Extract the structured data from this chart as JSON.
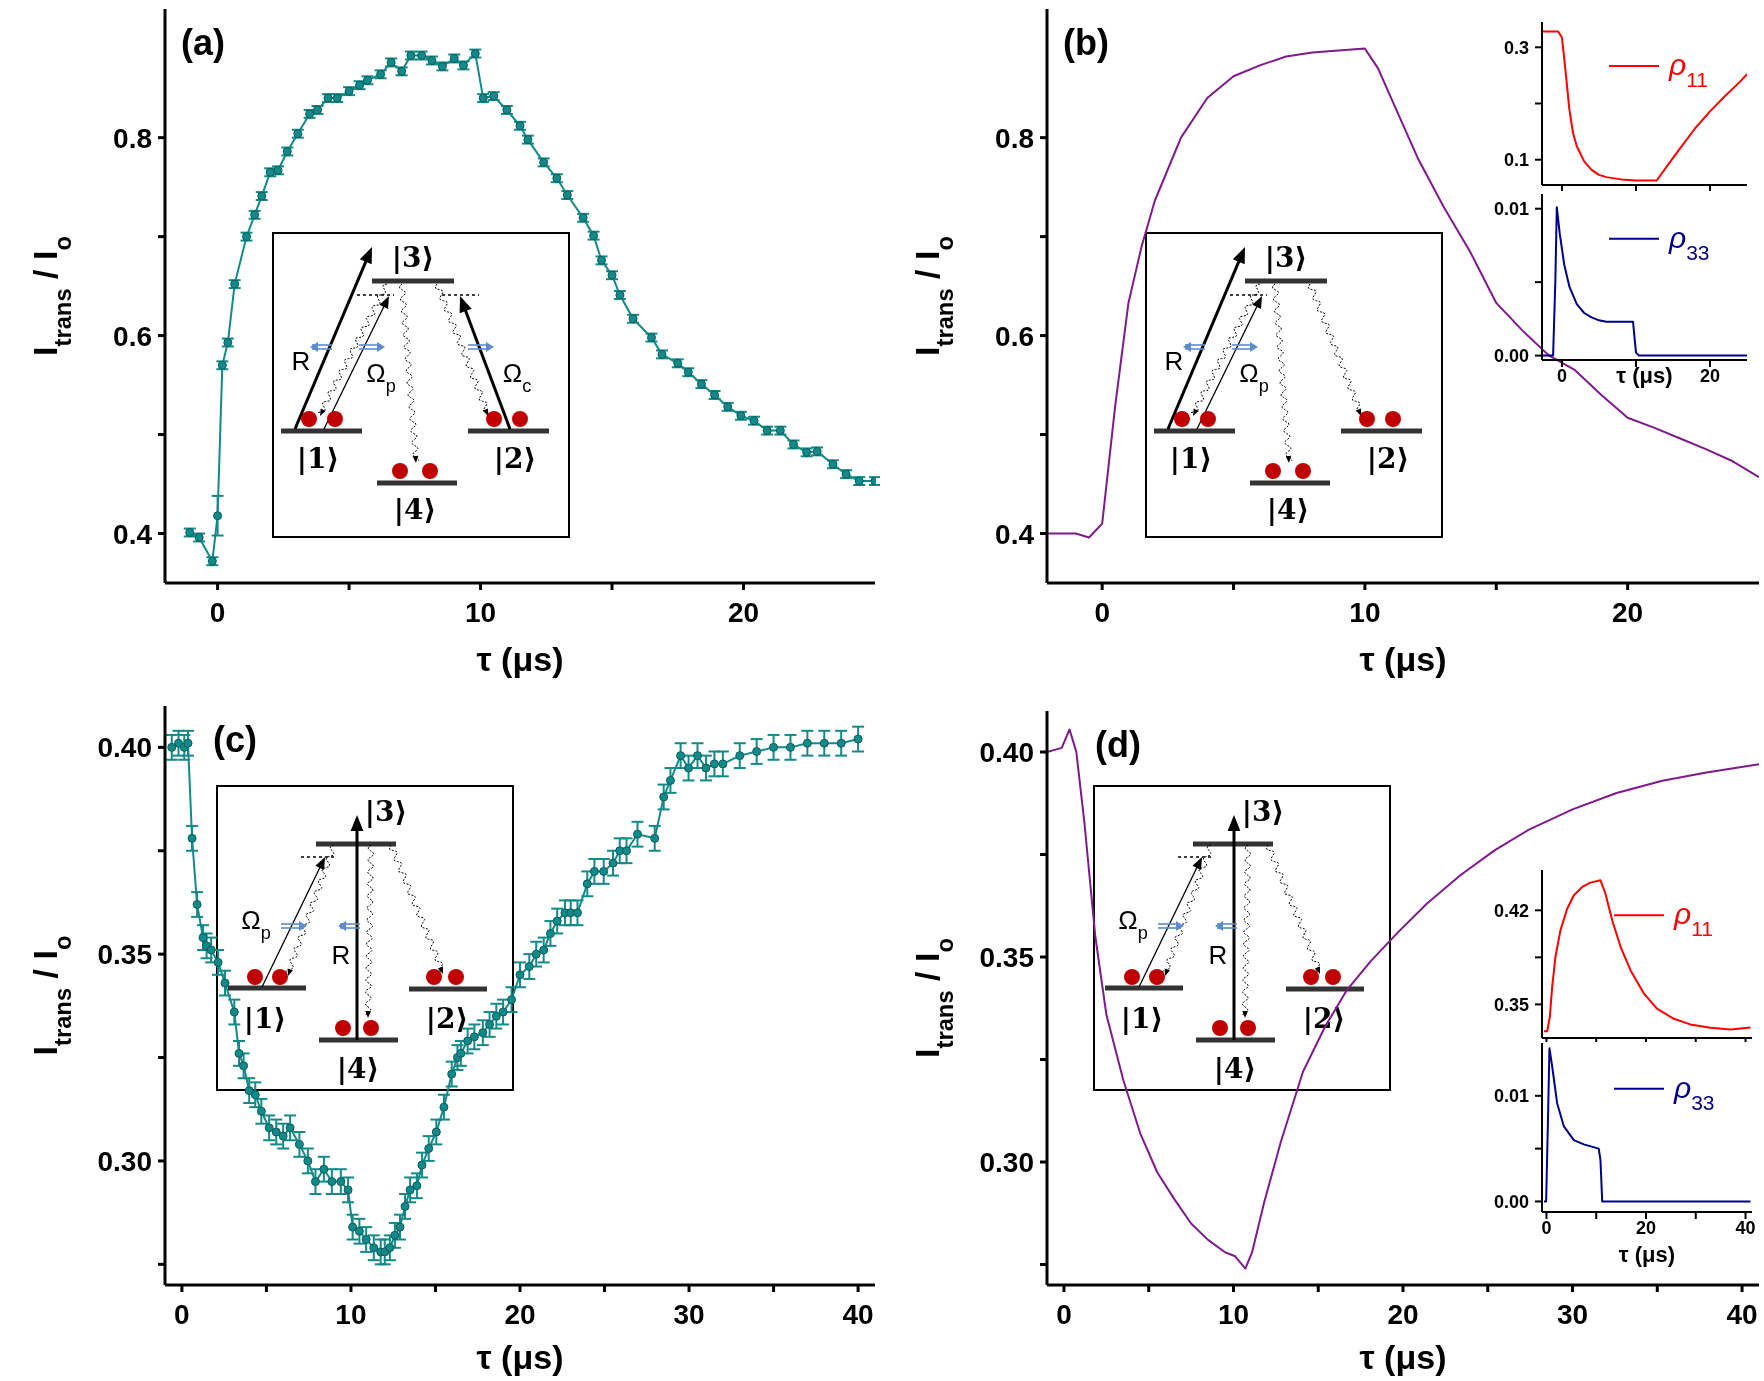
{
  "chart_data": [
    {
      "type": "line",
      "xlabel": "τ (μs)",
      "ylabel": "I$_{trans}$ / I$_{o}$",
      "annotations": [
        "(a)",
        "|1⟩",
        "|2⟩",
        "|3⟩",
        "|4⟩",
        "R",
        "Ω$_{p}$",
        "Ω$_{c}$"
      ],
      "x": [
        -1.06,
        -0.7,
        -0.2,
        0,
        0.18,
        0.39,
        0.65,
        1.1,
        1.41,
        1.68,
        2.0,
        2.3,
        2.65,
        3.05,
        3.5,
        3.8,
        4.2,
        4.55,
        5.0,
        5.4,
        5.7,
        6.2,
        6.6,
        7.0,
        7.35,
        7.76,
        8.15,
        8.55,
        9.0,
        9.35,
        9.8,
        10.1,
        10.5,
        11.0,
        11.5,
        11.8,
        12.4,
        12.9,
        13.3,
        13.9,
        14.3,
        14.6,
        15.0,
        15.3,
        15.8,
        16.5,
        16.9,
        17.5,
        17.9,
        18.4,
        18.9,
        19.4,
        19.9,
        20.4,
        20.9,
        21.4,
        21.9,
        22.4,
        22.8,
        23.4,
        23.9,
        24.4,
        25.0
      ],
      "series": [
        {
          "color": "#138a8a",
          "values": [
            0.401,
            0.396,
            0.372,
            0.418,
            0.57,
            0.593,
            0.652,
            0.7,
            0.722,
            0.741,
            0.765,
            0.767,
            0.786,
            0.804,
            0.824,
            0.828,
            0.84,
            0.84,
            0.847,
            0.853,
            0.858,
            0.864,
            0.876,
            0.867,
            0.883,
            0.883,
            0.878,
            0.872,
            0.88,
            0.873,
            0.885,
            0.84,
            0.842,
            0.828,
            0.812,
            0.798,
            0.775,
            0.759,
            0.742,
            0.719,
            0.701,
            0.676,
            0.661,
            0.641,
            0.617,
            0.598,
            0.581,
            0.572,
            0.563,
            0.551,
            0.54,
            0.528,
            0.519,
            0.514,
            0.504,
            0.504,
            0.49,
            0.482,
            0.483,
            0.47,
            0.46,
            0.453,
            0.453
          ],
          "errors": [
            0.004,
            0.004,
            0.004,
            0.02,
            0.004,
            0.004,
            0.004,
            0.004,
            0.004,
            0.004,
            0.004,
            0.004,
            0.004,
            0.004,
            0.004,
            0.004,
            0.004,
            0.004,
            0.004,
            0.004,
            0.004,
            0.004,
            0.004,
            0.004,
            0.004,
            0.004,
            0.004,
            0.004,
            0.004,
            0.004,
            0.004,
            0.004,
            0.004,
            0.004,
            0.004,
            0.004,
            0.004,
            0.004,
            0.004,
            0.004,
            0.004,
            0.004,
            0.004,
            0.004,
            0.004,
            0.004,
            0.004,
            0.004,
            0.004,
            0.004,
            0.004,
            0.004,
            0.004,
            0.004,
            0.004,
            0.004,
            0.004,
            0.004,
            0.004,
            0.004,
            0.004,
            0.004,
            0.004
          ]
        }
      ],
      "marker": "circle",
      "xlim": [
        -2,
        25
      ],
      "ylim": [
        0.35,
        0.93
      ],
      "xticks": [
        0,
        {
          "value": 5,
          "label": null
        },
        10,
        {
          "value": 15,
          "label": null
        },
        20
      ],
      "yticks": [
        0.4,
        {
          "value": 0.5,
          "label": null
        },
        0.6,
        {
          "value": 0.7,
          "label": null
        },
        0.8
      ]
    },
    {
      "type": "line",
      "xlabel": "τ (μs)",
      "ylabel": "I$_{trans}$ / I$_{o}$",
      "annotations": [
        "(b)",
        "|1⟩",
        "|2⟩",
        "|3⟩",
        "|4⟩",
        "R",
        "Ω$_{p}$"
      ],
      "x": [
        -2.1,
        -1,
        -0.5,
        0,
        0.5,
        1,
        1.5,
        2,
        3,
        4,
        5,
        6,
        7,
        8,
        9,
        10,
        10.5,
        11,
        12,
        13,
        14,
        15,
        16,
        17,
        18,
        19,
        20,
        21,
        22,
        23,
        24,
        25
      ],
      "series": [
        {
          "color": "#7f1a8c",
          "values": [
            0.4,
            0.4,
            0.396,
            0.41,
            0.53,
            0.633,
            0.69,
            0.736,
            0.8,
            0.84,
            0.862,
            0.873,
            0.882,
            0.886,
            0.888,
            0.89,
            0.87,
            0.84,
            0.78,
            0.73,
            0.685,
            0.633,
            0.605,
            0.58,
            0.565,
            0.54,
            0.517,
            0.507,
            0.496,
            0.485,
            0.473,
            0.457
          ]
        }
      ],
      "marker": "none",
      "xlim": [
        -2.1,
        25
      ],
      "ylim": [
        0.35,
        0.93
      ],
      "xticks": [
        0,
        {
          "value": 5,
          "label": null
        },
        10,
        {
          "value": 15,
          "label": null
        },
        20
      ],
      "yticks": [
        0.4,
        {
          "value": 0.5,
          "label": null
        },
        0.6,
        {
          "value": 0.7,
          "label": null
        },
        0.8
      ]
    },
    {
      "type": "line",
      "x": [
        -2.7,
        -0.5,
        0,
        0.5,
        1,
        1.5,
        2,
        3,
        4,
        5,
        6,
        8,
        10,
        12,
        12.8,
        14,
        16,
        18,
        20,
        22,
        24,
        25
      ],
      "series": [
        {
          "name": "ρ$_{11}$",
          "color": "#ff0000",
          "values": [
            0.328,
            0.328,
            0.317,
            0.255,
            0.189,
            0.147,
            0.124,
            0.097,
            0.082,
            0.073,
            0.069,
            0.065,
            0.063,
            0.063,
            0.063,
            0.085,
            0.121,
            0.156,
            0.186,
            0.213,
            0.238,
            0.252
          ]
        }
      ],
      "marker": "none",
      "legend": "top right",
      "tick_labels": "y",
      "xlim": [
        -2.7,
        25
      ],
      "ylim": [
        0.055,
        0.345
      ],
      "xticks": [
        0,
        10,
        20
      ],
      "yticks": [
        0.1,
        {
          "value": 0.2,
          "label": null
        },
        0.3
      ]
    },
    {
      "type": "line",
      "xlabel": "τ (μs)",
      "x": [
        -2.7,
        -1.2,
        -0.9,
        -0.7,
        -0.3,
        0.3,
        1,
        2,
        3,
        4,
        5,
        6,
        9.6,
        10,
        10.4,
        25
      ],
      "series": [
        {
          "name": "ρ$_{33}$",
          "color": "#00008b",
          "values": [
            0,
            0,
            0.005,
            0.0101,
            0.0083,
            0.0062,
            0.0047,
            0.0035,
            0.0029,
            0.0026,
            0.0024,
            0.0023,
            0.0023,
            0.0002,
            0,
            0
          ]
        }
      ],
      "marker": "none",
      "legend": "top right",
      "xlim": [
        -2.7,
        25
      ],
      "ylim": [
        -0.0003,
        0.011
      ],
      "xticks": [
        0,
        {
          "value": 10,
          "label": null
        },
        20
      ],
      "yticks": [
        {
          "value": 0,
          "label": "0.00"
        },
        {
          "value": 0.005,
          "label": null
        },
        0.01
      ]
    },
    {
      "type": "line",
      "xlabel": "τ (μs)",
      "ylabel": "I$_{trans}$ / I$_{o}$",
      "annotations": [
        "(c)",
        "|1⟩",
        "|2⟩",
        "|3⟩",
        "|4⟩",
        "R",
        "Ω$_{p}$"
      ],
      "x": [
        -0.6,
        -0.2,
        0.14,
        0.36,
        0.6,
        0.9,
        1.25,
        1.46,
        1.73,
        2.14,
        2.55,
        3.1,
        3.38,
        3.65,
        3.98,
        4.34,
        4.7,
        5.16,
        5.58,
        5.99,
        6.4,
        6.95,
        7.45,
        7.9,
        8.4,
        8.87,
        9.4,
        9.83,
        10.1,
        10.5,
        10.9,
        11.35,
        11.76,
        12.0,
        12.3,
        12.6,
        12.9,
        13.2,
        13.5,
        13.9,
        14.2,
        14.6,
        15.05,
        15.5,
        15.96,
        16.3,
        16.5,
        16.9,
        17.3,
        17.8,
        18.2,
        18.6,
        19.0,
        19.5,
        20.0,
        20.55,
        20.96,
        21.4,
        21.8,
        22.2,
        22.66,
        23.0,
        23.4,
        23.98,
        24.4,
        24.95,
        25.5,
        25.9,
        26.3,
        26.95,
        27.97,
        28.5,
        28.9,
        29.5,
        29.97,
        30.5,
        31.0,
        31.5,
        32.0,
        33.0,
        34.0,
        35.0,
        36.0,
        37.0,
        38.0,
        39.0,
        40.0
      ],
      "series": [
        {
          "color": "#138a8a",
          "values": [
            0.4,
            0.401,
            0.4,
            0.401,
            0.378,
            0.362,
            0.354,
            0.352,
            0.351,
            0.348,
            0.343,
            0.336,
            0.326,
            0.323,
            0.317,
            0.316,
            0.312,
            0.308,
            0.307,
            0.306,
            0.308,
            0.304,
            0.3,
            0.295,
            0.298,
            0.295,
            0.295,
            0.293,
            0.284,
            0.283,
            0.281,
            0.279,
            0.278,
            0.278,
            0.279,
            0.282,
            0.284,
            0.289,
            0.293,
            0.294,
            0.299,
            0.303,
            0.307,
            0.313,
            0.321,
            0.325,
            0.326,
            0.329,
            0.33,
            0.331,
            0.333,
            0.335,
            0.336,
            0.339,
            0.345,
            0.347,
            0.35,
            0.351,
            0.355,
            0.358,
            0.36,
            0.36,
            0.36,
            0.367,
            0.37,
            0.37,
            0.372,
            0.375,
            0.375,
            0.379,
            0.378,
            0.388,
            0.392,
            0.398,
            0.395,
            0.398,
            0.395,
            0.396,
            0.396,
            0.398,
            0.399,
            0.4,
            0.4,
            0.401,
            0.401,
            0.401,
            0.402
          ],
          "errors": [
            0.003,
            0.003,
            0.003,
            0.003,
            0.003,
            0.003,
            0.003,
            0.003,
            0.003,
            0.003,
            0.003,
            0.003,
            0.003,
            0.003,
            0.003,
            0.003,
            0.003,
            0.003,
            0.003,
            0.003,
            0.003,
            0.003,
            0.003,
            0.003,
            0.003,
            0.003,
            0.003,
            0.003,
            0.003,
            0.003,
            0.003,
            0.003,
            0.003,
            0.003,
            0.003,
            0.003,
            0.003,
            0.003,
            0.003,
            0.003,
            0.003,
            0.003,
            0.003,
            0.003,
            0.003,
            0.003,
            0.003,
            0.003,
            0.003,
            0.003,
            0.003,
            0.003,
            0.003,
            0.003,
            0.003,
            0.003,
            0.003,
            0.003,
            0.003,
            0.003,
            0.003,
            0.003,
            0.003,
            0.003,
            0.003,
            0.003,
            0.003,
            0.003,
            0.003,
            0.003,
            0.003,
            0.003,
            0.003,
            0.003,
            0.003,
            0.003,
            0.003,
            0.003,
            0.003,
            0.003,
            0.003,
            0.003,
            0.003,
            0.003,
            0.003,
            0.003,
            0.003
          ]
        }
      ],
      "marker": "circle",
      "xlim": [
        -1,
        41
      ],
      "ylim": [
        0.27,
        0.41
      ],
      "xticks": [
        0,
        {
          "value": 5,
          "label": null
        },
        10,
        {
          "value": 15,
          "label": null
        },
        20,
        {
          "value": 25,
          "label": null
        },
        30,
        {
          "value": 35,
          "label": null
        },
        40
      ],
      "yticks": [
        {
          "value": 0.275,
          "label": null
        },
        {
          "value": 0.3,
          "label": "0.30"
        },
        {
          "value": 0.325,
          "label": null
        },
        0.35,
        {
          "value": 0.375,
          "label": null
        },
        {
          "value": 0.4,
          "label": "0.40"
        }
      ]
    },
    {
      "type": "line",
      "xlabel": "τ (μs)",
      "ylabel": "I$_{trans}$ / I$_{o}$",
      "annotations": [
        "(d)",
        "|1⟩",
        "|2⟩",
        "|3⟩",
        "|4⟩",
        "R",
        "Ω$_{p}$"
      ],
      "x": [
        -1,
        -0.13,
        0.33,
        0.73,
        1.2,
        1.85,
        2.5,
        3.5,
        4.5,
        5.5,
        6.5,
        7.5,
        8.5,
        9.5,
        10.1,
        10.7,
        11.1,
        11.8,
        12.8,
        14.1,
        15.4,
        16.7,
        18.1,
        19.7,
        21.4,
        23.4,
        25.4,
        27.4,
        30,
        32.6,
        35.3,
        37.9,
        41
      ],
      "series": [
        {
          "color": "#7f1a8c",
          "values": [
            0.4,
            0.401,
            0.4055,
            0.4,
            0.383,
            0.355,
            0.336,
            0.32,
            0.307,
            0.2975,
            0.291,
            0.285,
            0.281,
            0.278,
            0.277,
            0.274,
            0.278,
            0.29,
            0.305,
            0.322,
            0.333,
            0.342,
            0.349,
            0.356,
            0.363,
            0.37,
            0.376,
            0.381,
            0.386,
            0.39,
            0.393,
            0.395,
            0.397
          ]
        }
      ],
      "marker": "none",
      "xlim": [
        -1,
        41
      ],
      "ylim": [
        0.27,
        0.41
      ],
      "xticks": [
        0,
        {
          "value": 5,
          "label": null
        },
        10,
        {
          "value": 15,
          "label": null
        },
        20,
        {
          "value": 25,
          "label": null
        },
        30,
        {
          "value": 35,
          "label": null
        },
        40
      ],
      "yticks": [
        {
          "value": 0.275,
          "label": null
        },
        {
          "value": 0.3,
          "label": "0.30"
        },
        {
          "value": 0.325,
          "label": null
        },
        0.35,
        {
          "value": 0.375,
          "label": null
        },
        {
          "value": 0.4,
          "label": "0.40"
        }
      ]
    },
    {
      "type": "line",
      "x": [
        -0.5,
        0.13,
        0.67,
        1.14,
        1.8,
        2.8,
        4.15,
        5.5,
        7.2,
        8.8,
        10.85,
        11.85,
        13.2,
        14.9,
        16.9,
        19.6,
        22.2,
        25.6,
        28.9,
        32.95,
        37,
        41
      ],
      "series": [
        {
          "name": "ρ$_{11}$",
          "color": "#ff0000",
          "values": [
            0.33,
            0.33,
            0.3406,
            0.3629,
            0.3853,
            0.4051,
            0.4212,
            0.4312,
            0.4374,
            0.4406,
            0.4423,
            0.4324,
            0.4126,
            0.3927,
            0.3753,
            0.358,
            0.3468,
            0.3393,
            0.3351,
            0.3326,
            0.3314,
            0.3328
          ]
        }
      ],
      "marker": "none",
      "legend": "top right",
      "tick_labels": "y",
      "xlim": [
        -0.9,
        41.3
      ],
      "ylim": [
        0.325,
        0.45
      ],
      "xticks": [
        0,
        {
          "value": 10,
          "label": null
        },
        20,
        {
          "value": 30,
          "label": null
        },
        40
      ],
      "yticks": [
        0.35,
        {
          "value": 0.385,
          "label": null
        },
        0.42
      ]
    },
    {
      "type": "line",
      "xlabel": "τ (μs)",
      "x": [
        -0.5,
        -0.07,
        0.27,
        0.6,
        1.14,
        2.14,
        3.5,
        5.5,
        7.5,
        10.5,
        10.85,
        11.2,
        41
      ],
      "series": [
        {
          "name": "ρ$_{33}$",
          "color": "#00008b",
          "values": [
            0,
            0,
            0.0071,
            0.0145,
            0.0128,
            0.0093,
            0.0071,
            0.0058,
            0.0054,
            0.005,
            0.0039,
            0,
            0
          ]
        }
      ],
      "marker": "none",
      "legend": "top right",
      "xlim": [
        -0.9,
        41.3
      ],
      "ylim": [
        -0.001,
        0.015
      ],
      "xticks": [
        0,
        {
          "value": 10,
          "label": null
        },
        20,
        {
          "value": 30,
          "label": null
        },
        40
      ],
      "yticks": [
        {
          "value": 0,
          "label": "0.00"
        },
        {
          "value": 0.005,
          "label": null
        },
        0.01
      ]
    }
  ]
}
